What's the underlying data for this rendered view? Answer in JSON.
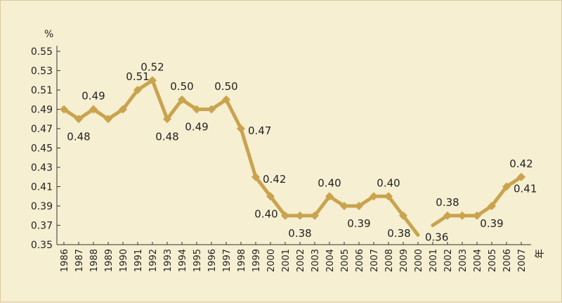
{
  "chart_data": {
    "type": "line",
    "title": "",
    "xlabel": "",
    "ylabel": "",
    "y_unit": "%",
    "x_unit": "年",
    "ylim": [
      0.35,
      0.55
    ],
    "yticks": [
      "0.55",
      "0.53",
      "0.51",
      "0.49",
      "0.47",
      "0.45",
      "0.43",
      "0.41",
      "0.39",
      "0.37",
      "0.35"
    ],
    "categories": [
      "1986",
      "1987",
      "1988",
      "1989",
      "1990",
      "1991",
      "1992",
      "1993",
      "1994",
      "1995",
      "1996",
      "1997",
      "1998",
      "1999",
      "2000",
      "2001",
      "2002",
      "2003",
      "2004",
      "2005",
      "2006",
      "2007",
      "2008",
      "2009",
      "2000",
      "2001",
      "2002",
      "2003",
      "2004",
      "2005",
      "2006",
      "2007"
    ],
    "values": [
      0.49,
      0.48,
      0.49,
      0.48,
      0.49,
      0.51,
      0.52,
      0.48,
      0.5,
      0.49,
      0.49,
      0.5,
      0.47,
      0.42,
      0.4,
      0.38,
      0.38,
      0.38,
      0.4,
      0.39,
      0.39,
      0.4,
      0.4,
      0.38,
      0.36,
      0.37,
      0.38,
      0.38,
      0.38,
      0.39,
      0.41,
      0.42
    ],
    "segments": [
      [
        0,
        24
      ],
      [
        25,
        31
      ]
    ],
    "data_labels": [
      {
        "index": 1,
        "text": "0.48",
        "pos": "below"
      },
      {
        "index": 2,
        "text": "0.49",
        "pos": "above"
      },
      {
        "index": 5,
        "text": "0.51",
        "pos": "above"
      },
      {
        "index": 6,
        "text": "0.52",
        "pos": "above"
      },
      {
        "index": 7,
        "text": "0.48",
        "pos": "below"
      },
      {
        "index": 8,
        "text": "0.50",
        "pos": "above"
      },
      {
        "index": 9,
        "text": "0.49",
        "pos": "below"
      },
      {
        "index": 11,
        "text": "0.50",
        "pos": "above"
      },
      {
        "index": 12,
        "text": "0.47",
        "pos": "right"
      },
      {
        "index": 13,
        "text": "0.42",
        "pos": "right"
      },
      {
        "index": 14,
        "text": "0.40",
        "pos": "below-left"
      },
      {
        "index": 16,
        "text": "0.38",
        "pos": "below"
      },
      {
        "index": 18,
        "text": "0.40",
        "pos": "above"
      },
      {
        "index": 20,
        "text": "0.39",
        "pos": "below"
      },
      {
        "index": 22,
        "text": "0.40",
        "pos": "above"
      },
      {
        "index": 23,
        "text": "0.38",
        "pos": "below-left"
      },
      {
        "index": 24,
        "text": "0.36",
        "pos": "right"
      },
      {
        "index": 26,
        "text": "0.38",
        "pos": "above"
      },
      {
        "index": 29,
        "text": "0.39",
        "pos": "below"
      },
      {
        "index": 30,
        "text": "0.41",
        "pos": "right"
      },
      {
        "index": 31,
        "text": "0.42",
        "pos": "above"
      }
    ],
    "grid": false,
    "legend": "none",
    "colors": {
      "line": "#c9a34e",
      "background": "#f7efd2",
      "axis": "#333333"
    }
  }
}
